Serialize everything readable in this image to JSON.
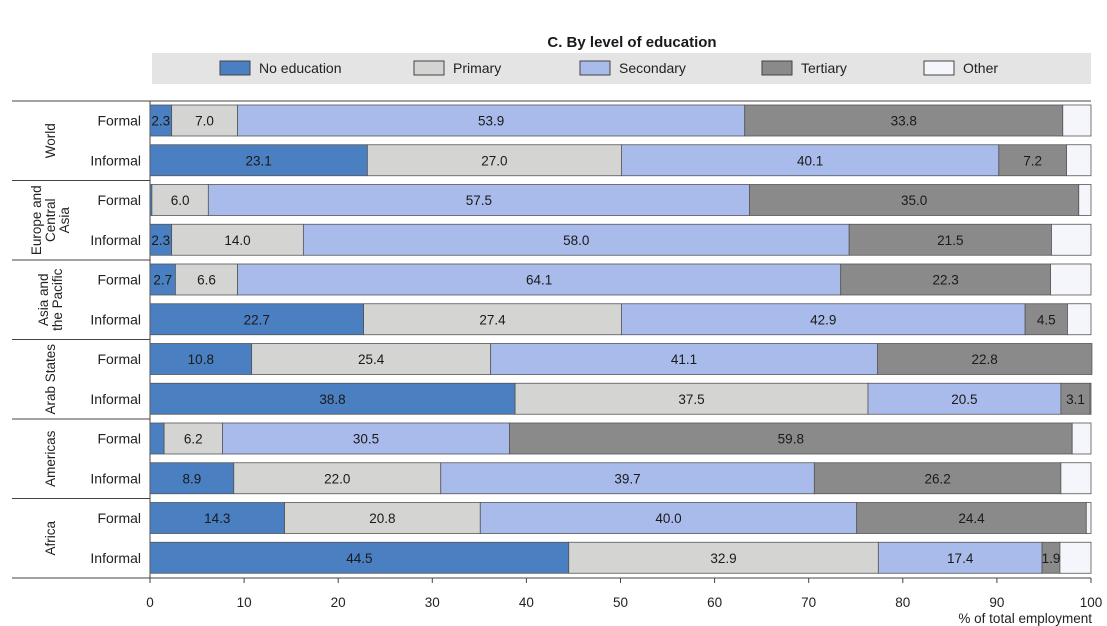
{
  "chart_data": {
    "type": "bar",
    "orientation": "horizontal-stacked",
    "title": "C. By level of education",
    "xlabel": "% of total employment",
    "xlim": [
      0,
      100
    ],
    "xticks": [
      0,
      10,
      20,
      30,
      40,
      50,
      60,
      70,
      80,
      90,
      100
    ],
    "legend_position": "top",
    "series": [
      {
        "name": "No education",
        "color": "#4a7fc1"
      },
      {
        "name": "Primary",
        "color": "#d4d4d2"
      },
      {
        "name": "Secondary",
        "color": "#a9bbea"
      },
      {
        "name": "Tertiary",
        "color": "#8a8a8a"
      },
      {
        "name": "Other",
        "color": "#f4f6fb"
      }
    ],
    "groups": [
      {
        "region": "World",
        "region_lines": [
          "World"
        ],
        "rows": [
          {
            "label": "Formal",
            "values": [
              2.3,
              7.0,
              53.9,
              33.8
            ],
            "labels": [
              "2.3",
              "7.0",
              "53.9",
              "33.8"
            ]
          },
          {
            "label": "Informal",
            "values": [
              23.1,
              27.0,
              40.1,
              7.2
            ],
            "labels": [
              "23.1",
              "27.0",
              "40.1",
              "7.2"
            ]
          }
        ]
      },
      {
        "region": "Europe and Central Asia",
        "region_lines": [
          "Europe and",
          "Central",
          "Asia"
        ],
        "rows": [
          {
            "label": "Formal",
            "values": [
              0.2,
              6.0,
              57.5,
              35.0
            ],
            "labels": [
              "",
              "6.0",
              "57.5",
              "35.0"
            ]
          },
          {
            "label": "Informal",
            "values": [
              2.3,
              14.0,
              58.0,
              21.5
            ],
            "labels": [
              "2.3",
              "14.0",
              "58.0",
              "21.5"
            ]
          }
        ]
      },
      {
        "region": "Asia and the Pacific",
        "region_lines": [
          "Asia and",
          "the Pacific"
        ],
        "rows": [
          {
            "label": "Formal",
            "values": [
              2.7,
              6.6,
              64.1,
              22.3
            ],
            "labels": [
              "2.7",
              "6.6",
              "64.1",
              "22.3"
            ]
          },
          {
            "label": "Informal",
            "values": [
              22.7,
              27.4,
              42.9,
              4.5
            ],
            "labels": [
              "22.7",
              "27.4",
              "42.9",
              "4.5"
            ]
          }
        ]
      },
      {
        "region": "Arab States",
        "region_lines": [
          "Arab States"
        ],
        "rows": [
          {
            "label": "Formal",
            "values": [
              10.8,
              25.4,
              41.1,
              22.8
            ],
            "labels": [
              "10.8",
              "25.4",
              "41.1",
              "22.8"
            ]
          },
          {
            "label": "Informal",
            "values": [
              38.8,
              37.5,
              20.5,
              3.1
            ],
            "labels": [
              "38.8",
              "37.5",
              "20.5",
              "3.1"
            ]
          }
        ]
      },
      {
        "region": "Americas",
        "region_lines": [
          "Americas"
        ],
        "rows": [
          {
            "label": "Formal",
            "values": [
              1.5,
              6.2,
              30.5,
              59.8
            ],
            "labels": [
              "",
              "6.2",
              "30.5",
              "59.8"
            ]
          },
          {
            "label": "Informal",
            "values": [
              8.9,
              22.0,
              39.7,
              26.2
            ],
            "labels": [
              "8.9",
              "22.0",
              "39.7",
              "26.2"
            ]
          }
        ]
      },
      {
        "region": "Africa",
        "region_lines": [
          "Africa"
        ],
        "rows": [
          {
            "label": "Formal",
            "values": [
              14.3,
              20.8,
              40.0,
              24.4
            ],
            "labels": [
              "14.3",
              "20.8",
              "40.0",
              "24.4"
            ]
          },
          {
            "label": "Informal",
            "values": [
              44.5,
              32.9,
              17.4,
              1.9
            ],
            "labels": [
              "44.5",
              "32.9",
              "17.4",
              "1.9"
            ]
          }
        ]
      }
    ]
  }
}
